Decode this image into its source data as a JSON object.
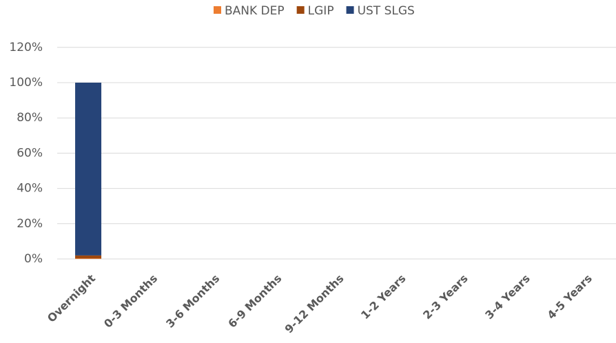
{
  "chart_data": {
    "type": "stacked_bar",
    "categories": [
      "Overnight",
      "0-3 Months",
      "3-6 Months",
      "6-9 Months",
      "9-12 Months",
      "1-2 Years",
      "2-3 Years",
      "3-4 Years",
      "4-5 Years"
    ],
    "series": [
      {
        "name": "BANK DEP",
        "color": "#ed7d31",
        "values": [
          0.3,
          0,
          0,
          0,
          0,
          0,
          0,
          0,
          0
        ]
      },
      {
        "name": "LGIP",
        "color": "#9e480e",
        "values": [
          1.7,
          0,
          0,
          0,
          0,
          0,
          0,
          0,
          0
        ]
      },
      {
        "name": "UST SLGS",
        "color": "#264478",
        "values": [
          98,
          0,
          0,
          0,
          0,
          0,
          0,
          0,
          0
        ]
      }
    ],
    "ylim": [
      0,
      120
    ],
    "yticks": [
      {
        "value": 0,
        "label": "0%"
      },
      {
        "value": 20,
        "label": "20%"
      },
      {
        "value": 40,
        "label": "40%"
      },
      {
        "value": 60,
        "label": "60%"
      },
      {
        "value": 80,
        "label": "80%"
      },
      {
        "value": 100,
        "label": "100%"
      },
      {
        "value": 120,
        "label": "120%"
      }
    ],
    "grid": true,
    "legend": "top"
  }
}
